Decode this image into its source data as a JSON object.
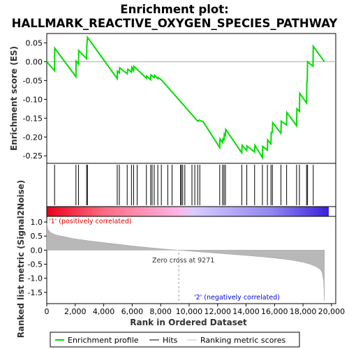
{
  "chart_data": {
    "type": "line",
    "title_line1": "Enrichment plot:",
    "title_line2": "HALLMARK_REACTIVE_OXYGEN_SPECIES_PATHWAY",
    "x_label": "Rank in Ordered Dataset",
    "es_panel": {
      "ylabel": "Enrichment score (ES)",
      "ylim": [
        -0.27,
        0.075
      ],
      "yticks": [
        0.05,
        0.0,
        -0.05,
        -0.1,
        -0.15,
        -0.2,
        -0.25
      ],
      "ytick_labels": [
        "0.05",
        "0.00",
        "-0.05",
        "-0.10",
        "-0.15",
        "-0.20",
        "-0.25"
      ],
      "series_name": "Enrichment profile",
      "color": "#00dd00",
      "points": [
        [
          0,
          0.0
        ],
        [
          550,
          -0.024
        ],
        [
          560,
          0.036
        ],
        [
          2050,
          -0.04
        ],
        [
          2060,
          0.002
        ],
        [
          2230,
          -0.006
        ],
        [
          2240,
          0.03
        ],
        [
          2800,
          0.008
        ],
        [
          2810,
          0.038
        ],
        [
          2860,
          0.065
        ],
        [
          4950,
          -0.045
        ],
        [
          4960,
          -0.025
        ],
        [
          5100,
          -0.03
        ],
        [
          5120,
          -0.016
        ],
        [
          5650,
          -0.032
        ],
        [
          5700,
          -0.02
        ],
        [
          5950,
          -0.028
        ],
        [
          5970,
          -0.015
        ],
        [
          6100,
          -0.024
        ],
        [
          6120,
          -0.012
        ],
        [
          7000,
          -0.044
        ],
        [
          7010,
          -0.038
        ],
        [
          7300,
          -0.048
        ],
        [
          7310,
          -0.035
        ],
        [
          7550,
          -0.042
        ],
        [
          7570,
          -0.036
        ],
        [
          7800,
          -0.045
        ],
        [
          7820,
          -0.042
        ],
        [
          8050,
          -0.048
        ],
        [
          8100,
          -0.05
        ],
        [
          10600,
          -0.158
        ],
        [
          10700,
          -0.155
        ],
        [
          11000,
          -0.16
        ],
        [
          12150,
          -0.228
        ],
        [
          12170,
          -0.205
        ],
        [
          12350,
          -0.215
        ],
        [
          12370,
          -0.205
        ],
        [
          12450,
          -0.208
        ],
        [
          12470,
          -0.192
        ],
        [
          12550,
          -0.196
        ],
        [
          12570,
          -0.18
        ],
        [
          13700,
          -0.242
        ],
        [
          13720,
          -0.222
        ],
        [
          14050,
          -0.236
        ],
        [
          14070,
          -0.224
        ],
        [
          14600,
          -0.24
        ],
        [
          14620,
          -0.222
        ],
        [
          15150,
          -0.255
        ],
        [
          15170,
          -0.225
        ],
        [
          15500,
          -0.235
        ],
        [
          15520,
          -0.208
        ],
        [
          15750,
          -0.218
        ],
        [
          15770,
          -0.188
        ],
        [
          15850,
          -0.188
        ],
        [
          15870,
          -0.162
        ],
        [
          16450,
          -0.19
        ],
        [
          16470,
          -0.158
        ],
        [
          16850,
          -0.168
        ],
        [
          16870,
          -0.135
        ],
        [
          17550,
          -0.17
        ],
        [
          17570,
          -0.125
        ],
        [
          17750,
          -0.132
        ],
        [
          17770,
          -0.084
        ],
        [
          18250,
          -0.11
        ],
        [
          18270,
          -0.055
        ],
        [
          18300,
          -0.052
        ],
        [
          18320,
          0.0
        ],
        [
          18700,
          -0.012
        ],
        [
          18720,
          0.041
        ],
        [
          19500,
          0.0
        ]
      ]
    },
    "hits_panel": {
      "series_name": "Hits",
      "hit_ranks": [
        550,
        2050,
        2230,
        2800,
        2860,
        4950,
        5100,
        5650,
        5950,
        6100,
        6350,
        7000,
        7300,
        7400,
        7550,
        7800,
        8050,
        8500,
        8800,
        9400,
        9450,
        9550,
        9700,
        10200,
        10400,
        10600,
        10750,
        12150,
        12350,
        12450,
        12550,
        13700,
        14050,
        14600,
        15150,
        15500,
        15750,
        15850,
        16450,
        16850,
        17550,
        17750,
        18250,
        18320,
        18720
      ],
      "rank_bar_gradient": [
        "#e8001a",
        "#ff6a80",
        "#ffb6e6",
        "#d8ccff",
        "#8f86ee",
        "#3a20d8"
      ]
    },
    "metric_panel": {
      "ylabel": "Ranked list metric (Signal2Noise)",
      "series_name": "Ranking metric scores",
      "ylim": [
        -1.9,
        1.2
      ],
      "yticks": [
        1.0,
        0.5,
        0.0,
        -0.5,
        -1.0,
        -1.5
      ],
      "ytick_labels": [
        "1.0",
        "0.5",
        "0.0",
        "-0.5",
        "-1.0",
        "-1.5"
      ],
      "curve": [
        [
          0,
          0.95
        ],
        [
          100,
          0.72
        ],
        [
          300,
          0.62
        ],
        [
          600,
          0.55
        ],
        [
          1000,
          0.5
        ],
        [
          1500,
          0.45
        ],
        [
          2000,
          0.4
        ],
        [
          3000,
          0.33
        ],
        [
          4000,
          0.27
        ],
        [
          5000,
          0.21
        ],
        [
          6000,
          0.15
        ],
        [
          7000,
          0.1
        ],
        [
          8000,
          0.05
        ],
        [
          9271,
          0.0
        ],
        [
          10000,
          -0.03
        ],
        [
          11000,
          -0.07
        ],
        [
          12000,
          -0.11
        ],
        [
          13000,
          -0.15
        ],
        [
          14000,
          -0.19
        ],
        [
          15000,
          -0.23
        ],
        [
          16000,
          -0.28
        ],
        [
          17000,
          -0.34
        ],
        [
          17500,
          -0.38
        ],
        [
          18000,
          -0.43
        ],
        [
          18500,
          -0.5
        ],
        [
          18900,
          -0.58
        ],
        [
          19200,
          -0.68
        ],
        [
          19350,
          -0.8
        ],
        [
          19450,
          -1.1
        ],
        [
          19500,
          -1.8
        ]
      ],
      "pos_label": "'1' (positively correlated)",
      "neg_label": "'2' (negatively correlated)",
      "zero_cross_label": "Zero cross at 9271",
      "zero_cross": 9271,
      "pos_color": "#dd0000",
      "neg_color": "#0000dd"
    },
    "xlim": [
      0,
      20300
    ],
    "xticks": [
      0,
      2000,
      4000,
      6000,
      8000,
      10000,
      12000,
      14000,
      16000,
      18000,
      20000
    ],
    "xtick_labels": [
      "0",
      "2,000",
      "4,000",
      "6,000",
      "8,000",
      "10,000",
      "12,000",
      "14,000",
      "16,000",
      "18,000",
      "20,000"
    ],
    "legend": {
      "items": [
        "Enrichment profile",
        "Hits",
        "Ranking metric scores"
      ],
      "placement": "bottom"
    }
  }
}
